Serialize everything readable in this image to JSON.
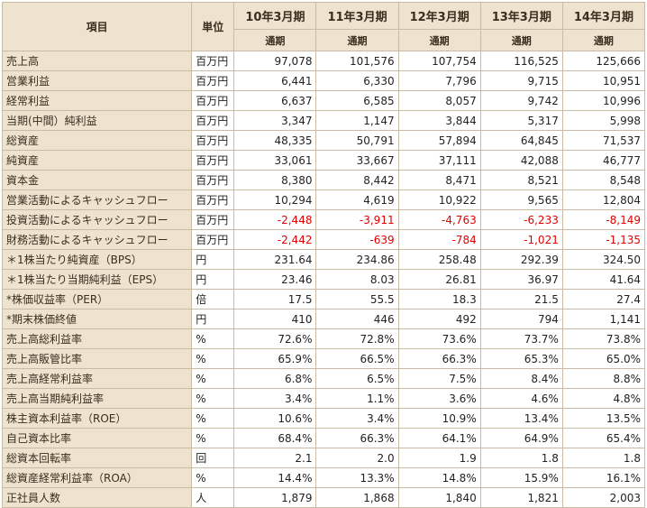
{
  "header": {
    "item_label": "項目",
    "unit_label": "単位",
    "periods": [
      "10年3月期",
      "11年3月期",
      "12年3月期",
      "13年3月期",
      "14年3月期"
    ],
    "period_type": "通期"
  },
  "rows": [
    {
      "label": "売上高",
      "unit": "百万円",
      "values": [
        "97,078",
        "101,576",
        "107,754",
        "116,525",
        "125,666"
      ]
    },
    {
      "label": "営業利益",
      "unit": "百万円",
      "values": [
        "6,441",
        "6,330",
        "7,796",
        "9,715",
        "10,951"
      ]
    },
    {
      "label": "経常利益",
      "unit": "百万円",
      "values": [
        "6,637",
        "6,585",
        "8,057",
        "9,742",
        "10,996"
      ]
    },
    {
      "label": "当期(中間）純利益",
      "unit": "百万円",
      "values": [
        "3,347",
        "1,147",
        "3,844",
        "5,317",
        "5,998"
      ]
    },
    {
      "label": "総資産",
      "unit": "百万円",
      "values": [
        "48,335",
        "50,791",
        "57,894",
        "64,845",
        "71,537"
      ]
    },
    {
      "label": "純資産",
      "unit": "百万円",
      "values": [
        "33,061",
        "33,667",
        "37,111",
        "42,088",
        "46,777"
      ]
    },
    {
      "label": "資本金",
      "unit": "百万円",
      "values": [
        "8,380",
        "8,442",
        "8,471",
        "8,521",
        "8,548"
      ]
    },
    {
      "label": "営業活動によるキャッシュフロー",
      "unit": "百万円",
      "values": [
        "10,294",
        "4,619",
        "10,922",
        "9,565",
        "12,804"
      ]
    },
    {
      "label": "投資活動によるキャッシュフロー",
      "unit": "百万円",
      "values": [
        "-2,448",
        "-3,911",
        "-4,763",
        "-6,233",
        "-8,149"
      ]
    },
    {
      "label": "財務活動によるキャッシュフロー",
      "unit": "百万円",
      "values": [
        "-2,442",
        "-639",
        "-784",
        "-1,021",
        "-1,135"
      ]
    },
    {
      "label": "＊1株当たり純資産（BPS）",
      "unit": "円",
      "values": [
        "231.64",
        "234.86",
        "258.48",
        "292.39",
        "324.50"
      ]
    },
    {
      "label": "＊1株当たり当期純利益（EPS）",
      "unit": "円",
      "values": [
        "23.46",
        "8.03",
        "26.81",
        "36.97",
        "41.64"
      ]
    },
    {
      "label": "*株価収益率（PER）",
      "unit": "倍",
      "values": [
        "17.5",
        "55.5",
        "18.3",
        "21.5",
        "27.4"
      ]
    },
    {
      "label": "*期末株価終値",
      "unit": "円",
      "values": [
        "410",
        "446",
        "492",
        "794",
        "1,141"
      ]
    },
    {
      "label": "売上高総利益率",
      "unit": "%",
      "values": [
        "72.6%",
        "72.8%",
        "73.6%",
        "73.7%",
        "73.8%"
      ]
    },
    {
      "label": "売上高販管比率",
      "unit": "%",
      "values": [
        "65.9%",
        "66.5%",
        "66.3%",
        "65.3%",
        "65.0%"
      ]
    },
    {
      "label": "売上高経常利益率",
      "unit": "%",
      "values": [
        "6.8%",
        "6.5%",
        "7.5%",
        "8.4%",
        "8.8%"
      ]
    },
    {
      "label": "売上高当期純利益率",
      "unit": "%",
      "values": [
        "3.4%",
        "1.1%",
        "3.6%",
        "4.6%",
        "4.8%"
      ]
    },
    {
      "label": "株主資本利益率（ROE）",
      "unit": "%",
      "values": [
        "10.6%",
        "3.4%",
        "10.9%",
        "13.4%",
        "13.5%"
      ]
    },
    {
      "label": "自己資本比率",
      "unit": "%",
      "values": [
        "68.4%",
        "66.3%",
        "64.1%",
        "64.9%",
        "65.4%"
      ]
    },
    {
      "label": "総資本回転率",
      "unit": "回",
      "values": [
        "2.1",
        "2.0",
        "1.9",
        "1.8",
        "1.8"
      ]
    },
    {
      "label": "総資産経常利益率（ROA）",
      "unit": "%",
      "values": [
        "14.4%",
        "13.3%",
        "14.8%",
        "15.9%",
        "16.1%"
      ]
    },
    {
      "label": "正社員人数",
      "unit": "人",
      "values": [
        "1,879",
        "1,868",
        "1,840",
        "1,821",
        "2,003"
      ]
    }
  ],
  "colors": {
    "header_bg": "#ede3cf",
    "border": "#c8bca4",
    "negative": "#e00000"
  }
}
